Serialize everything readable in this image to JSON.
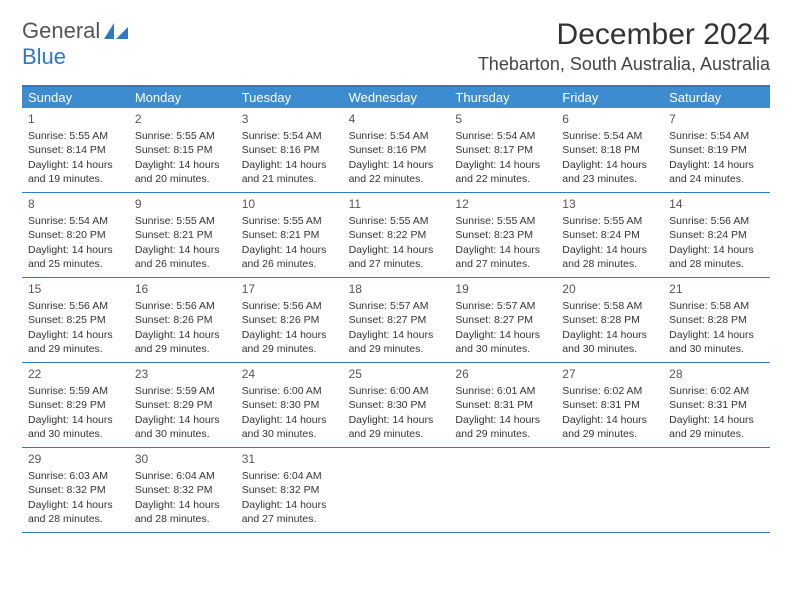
{
  "logo": {
    "text1": "General",
    "text2": "Blue"
  },
  "header": {
    "month_title": "December 2024",
    "location": "Thebarton, South Australia, Australia"
  },
  "colors": {
    "header_bg": "#3d8ccf",
    "border": "#2f78c4",
    "text": "#333333"
  },
  "weekdays": [
    "Sunday",
    "Monday",
    "Tuesday",
    "Wednesday",
    "Thursday",
    "Friday",
    "Saturday"
  ],
  "weeks": [
    [
      {
        "num": "1",
        "sunrise": "5:55 AM",
        "sunset": "8:14 PM",
        "day_h": "14",
        "day_m": "19"
      },
      {
        "num": "2",
        "sunrise": "5:55 AM",
        "sunset": "8:15 PM",
        "day_h": "14",
        "day_m": "20"
      },
      {
        "num": "3",
        "sunrise": "5:54 AM",
        "sunset": "8:16 PM",
        "day_h": "14",
        "day_m": "21"
      },
      {
        "num": "4",
        "sunrise": "5:54 AM",
        "sunset": "8:16 PM",
        "day_h": "14",
        "day_m": "22"
      },
      {
        "num": "5",
        "sunrise": "5:54 AM",
        "sunset": "8:17 PM",
        "day_h": "14",
        "day_m": "22"
      },
      {
        "num": "6",
        "sunrise": "5:54 AM",
        "sunset": "8:18 PM",
        "day_h": "14",
        "day_m": "23"
      },
      {
        "num": "7",
        "sunrise": "5:54 AM",
        "sunset": "8:19 PM",
        "day_h": "14",
        "day_m": "24"
      }
    ],
    [
      {
        "num": "8",
        "sunrise": "5:54 AM",
        "sunset": "8:20 PM",
        "day_h": "14",
        "day_m": "25"
      },
      {
        "num": "9",
        "sunrise": "5:55 AM",
        "sunset": "8:21 PM",
        "day_h": "14",
        "day_m": "26"
      },
      {
        "num": "10",
        "sunrise": "5:55 AM",
        "sunset": "8:21 PM",
        "day_h": "14",
        "day_m": "26"
      },
      {
        "num": "11",
        "sunrise": "5:55 AM",
        "sunset": "8:22 PM",
        "day_h": "14",
        "day_m": "27"
      },
      {
        "num": "12",
        "sunrise": "5:55 AM",
        "sunset": "8:23 PM",
        "day_h": "14",
        "day_m": "27"
      },
      {
        "num": "13",
        "sunrise": "5:55 AM",
        "sunset": "8:24 PM",
        "day_h": "14",
        "day_m": "28"
      },
      {
        "num": "14",
        "sunrise": "5:56 AM",
        "sunset": "8:24 PM",
        "day_h": "14",
        "day_m": "28"
      }
    ],
    [
      {
        "num": "15",
        "sunrise": "5:56 AM",
        "sunset": "8:25 PM",
        "day_h": "14",
        "day_m": "29"
      },
      {
        "num": "16",
        "sunrise": "5:56 AM",
        "sunset": "8:26 PM",
        "day_h": "14",
        "day_m": "29"
      },
      {
        "num": "17",
        "sunrise": "5:56 AM",
        "sunset": "8:26 PM",
        "day_h": "14",
        "day_m": "29"
      },
      {
        "num": "18",
        "sunrise": "5:57 AM",
        "sunset": "8:27 PM",
        "day_h": "14",
        "day_m": "29"
      },
      {
        "num": "19",
        "sunrise": "5:57 AM",
        "sunset": "8:27 PM",
        "day_h": "14",
        "day_m": "30"
      },
      {
        "num": "20",
        "sunrise": "5:58 AM",
        "sunset": "8:28 PM",
        "day_h": "14",
        "day_m": "30"
      },
      {
        "num": "21",
        "sunrise": "5:58 AM",
        "sunset": "8:28 PM",
        "day_h": "14",
        "day_m": "30"
      }
    ],
    [
      {
        "num": "22",
        "sunrise": "5:59 AM",
        "sunset": "8:29 PM",
        "day_h": "14",
        "day_m": "30"
      },
      {
        "num": "23",
        "sunrise": "5:59 AM",
        "sunset": "8:29 PM",
        "day_h": "14",
        "day_m": "30"
      },
      {
        "num": "24",
        "sunrise": "6:00 AM",
        "sunset": "8:30 PM",
        "day_h": "14",
        "day_m": "30"
      },
      {
        "num": "25",
        "sunrise": "6:00 AM",
        "sunset": "8:30 PM",
        "day_h": "14",
        "day_m": "29"
      },
      {
        "num": "26",
        "sunrise": "6:01 AM",
        "sunset": "8:31 PM",
        "day_h": "14",
        "day_m": "29"
      },
      {
        "num": "27",
        "sunrise": "6:02 AM",
        "sunset": "8:31 PM",
        "day_h": "14",
        "day_m": "29"
      },
      {
        "num": "28",
        "sunrise": "6:02 AM",
        "sunset": "8:31 PM",
        "day_h": "14",
        "day_m": "29"
      }
    ],
    [
      {
        "num": "29",
        "sunrise": "6:03 AM",
        "sunset": "8:32 PM",
        "day_h": "14",
        "day_m": "28"
      },
      {
        "num": "30",
        "sunrise": "6:04 AM",
        "sunset": "8:32 PM",
        "day_h": "14",
        "day_m": "28"
      },
      {
        "num": "31",
        "sunrise": "6:04 AM",
        "sunset": "8:32 PM",
        "day_h": "14",
        "day_m": "27"
      },
      null,
      null,
      null,
      null
    ]
  ],
  "labels": {
    "sunrise_prefix": "Sunrise: ",
    "sunset_prefix": "Sunset: ",
    "daylight_prefix": "Daylight: ",
    "hours_word": " hours",
    "and_word": "and ",
    "minutes_word": " minutes."
  }
}
